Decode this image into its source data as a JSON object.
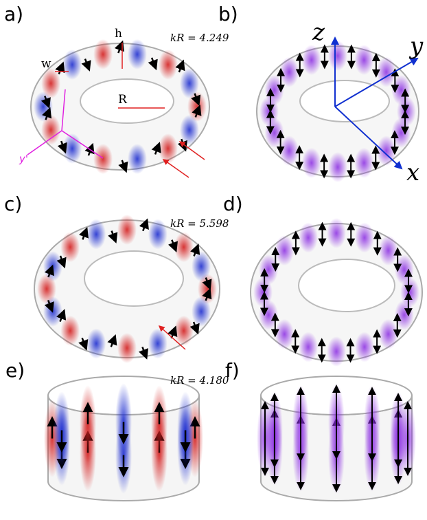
{
  "panels": [
    {
      "label": "a)",
      "annotation": "kR = 4.249",
      "dimensions": {
        "h": "h",
        "w": "w",
        "R": "R"
      },
      "local_axis": "y'"
    },
    {
      "label": "b)",
      "axes": {
        "z": "z",
        "y": "y",
        "x": "x"
      }
    },
    {
      "label": "c)",
      "annotation": "kR = 5.598"
    },
    {
      "label": "d)"
    },
    {
      "label": "e)",
      "annotation": "kR = 4.180"
    },
    {
      "label": "f)"
    }
  ]
}
